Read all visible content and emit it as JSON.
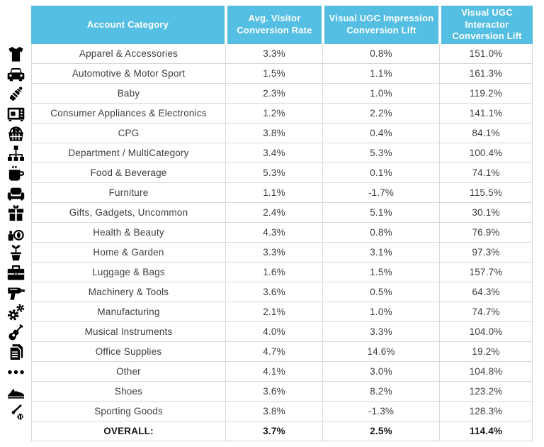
{
  "chart_data": {
    "type": "table",
    "columns": [
      "Account Category",
      "Avg. Visitor Conversion Rate",
      "Visual UGC Impression Conversion Lift",
      "Visual UGC Interactor Conversion Lift"
    ],
    "rows": [
      {
        "icon": "tshirt-icon",
        "cells": [
          "Apparel & Accessories",
          "3.3%",
          "0.8%",
          "151.0%"
        ]
      },
      {
        "icon": "car-icon",
        "cells": [
          "Automotive & Motor Sport",
          "1.5%",
          "1.1%",
          "161.3%"
        ]
      },
      {
        "icon": "baby-bottle-icon",
        "cells": [
          "Baby",
          "2.3%",
          "1.0%",
          "119.2%"
        ]
      },
      {
        "icon": "microwave-icon",
        "cells": [
          "Consumer Appliances & Electronics",
          "1.2%",
          "2.2%",
          "141.1%"
        ]
      },
      {
        "icon": "grocery-basket-icon",
        "cells": [
          "CPG",
          "3.8%",
          "0.4%",
          "84.1%"
        ]
      },
      {
        "icon": "sitemap-icon",
        "cells": [
          "Department / MultiCategory",
          "3.4%",
          "5.3%",
          "100.4%"
        ]
      },
      {
        "icon": "coffee-mug-icon",
        "cells": [
          "Food & Beverage",
          "5.3%",
          "0.1%",
          "74.1%"
        ]
      },
      {
        "icon": "sofa-icon",
        "cells": [
          "Furniture",
          "1.1%",
          "-1.7%",
          "115.5%"
        ]
      },
      {
        "icon": "gift-icon",
        "cells": [
          "Gifts, Gadgets, Uncommon",
          "2.4%",
          "5.1%",
          "30.1%"
        ]
      },
      {
        "icon": "cosmetics-icon",
        "cells": [
          "Health & Beauty",
          "4.3%",
          "0.8%",
          "76.9%"
        ]
      },
      {
        "icon": "potted-plant-icon",
        "cells": [
          "Home & Garden",
          "3.3%",
          "3.1%",
          "97.3%"
        ]
      },
      {
        "icon": "briefcase-icon",
        "cells": [
          "Luggage & Bags",
          "1.6%",
          "1.5%",
          "157.7%"
        ]
      },
      {
        "icon": "drill-icon",
        "cells": [
          "Machinery & Tools",
          "3.6%",
          "0.5%",
          "64.3%"
        ]
      },
      {
        "icon": "gears-icon",
        "cells": [
          "Manufacturing",
          "2.1%",
          "1.0%",
          "74.7%"
        ]
      },
      {
        "icon": "guitar-icon",
        "cells": [
          "Musical Instruments",
          "4.0%",
          "3.3%",
          "104.0%"
        ]
      },
      {
        "icon": "documents-icon",
        "cells": [
          "Office Supplies",
          "4.7%",
          "14.6%",
          "19.2%"
        ]
      },
      {
        "icon": "ellipsis-icon",
        "cells": [
          "Other",
          "4.1%",
          "3.0%",
          "104.8%"
        ]
      },
      {
        "icon": "sneaker-icon",
        "cells": [
          "Shoes",
          "3.6%",
          "8.2%",
          "123.2%"
        ]
      },
      {
        "icon": "baseball-icon",
        "cells": [
          "Sporting Goods",
          "3.8%",
          "-1.3%",
          "128.3%"
        ]
      }
    ],
    "overall_row": {
      "cells": [
        "OVERALL:",
        "3.7%",
        "2.5%",
        "114.4%"
      ]
    }
  },
  "colors": {
    "header_bg": "#55BEE3",
    "header_text": "#FFFFFF",
    "body_text": "#3D3D3D",
    "border": "#D9D9D9",
    "icon": "#000000"
  }
}
